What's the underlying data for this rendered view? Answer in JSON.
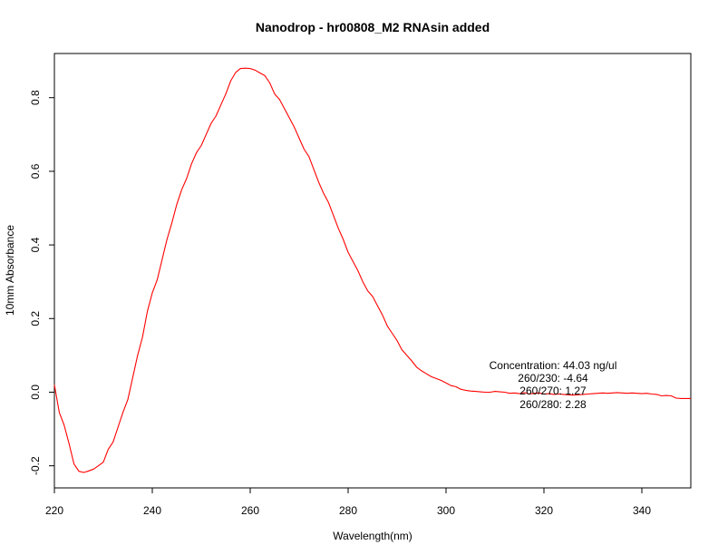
{
  "chart_data": {
    "type": "line",
    "title": "Nanodrop - hr00808_M2 RNAsin added",
    "xlabel": "Wavelength(nm)",
    "ylabel": "10mm Absorbance",
    "xlim": [
      220,
      350
    ],
    "ylim": [
      -0.26,
      0.92
    ],
    "xticks": [
      220,
      240,
      260,
      280,
      300,
      320,
      340
    ],
    "yticks": [
      -0.2,
      0.0,
      0.2,
      0.4,
      0.6,
      0.8
    ],
    "ytick_labels": [
      "-0.2",
      "0.0",
      "0.2",
      "0.4",
      "0.6",
      "0.8"
    ],
    "grid": false,
    "line_color": "#ff0000",
    "series": [
      {
        "x": [
          220,
          221,
          222,
          223,
          224,
          225,
          226,
          227,
          228,
          229,
          230,
          231,
          232,
          233,
          234,
          235,
          236,
          237,
          238,
          239,
          240,
          241,
          242,
          243,
          244,
          245,
          246,
          247,
          248,
          249,
          250,
          251,
          252,
          253,
          254,
          255,
          256,
          257,
          258,
          259,
          260,
          261,
          262,
          263,
          264,
          265,
          266,
          267,
          268,
          269,
          270,
          271,
          272,
          273,
          274,
          275,
          276,
          277,
          278,
          279,
          280,
          281,
          282,
          283,
          284,
          285,
          286,
          287,
          288,
          289,
          290,
          291,
          292,
          293,
          294,
          295,
          296,
          297,
          298,
          299,
          300,
          301,
          302,
          303,
          304,
          305,
          306,
          307,
          308,
          309,
          310,
          311,
          312,
          313,
          314,
          315,
          316,
          317,
          318,
          319,
          320,
          321,
          322,
          323,
          324,
          325,
          326,
          327,
          328,
          329,
          330,
          331,
          332,
          333,
          334,
          335,
          336,
          337,
          338,
          339,
          340,
          341,
          342,
          343,
          344,
          345,
          346,
          347,
          348,
          349,
          350
        ],
        "y": [
          0.02,
          -0.055,
          -0.09,
          -0.14,
          -0.195,
          -0.215,
          -0.218,
          -0.214,
          -0.209,
          -0.2,
          -0.19,
          -0.155,
          -0.135,
          -0.095,
          -0.055,
          -0.02,
          0.04,
          0.1,
          0.15,
          0.22,
          0.27,
          0.305,
          0.36,
          0.415,
          0.46,
          0.51,
          0.55,
          0.58,
          0.62,
          0.65,
          0.67,
          0.7,
          0.73,
          0.75,
          0.78,
          0.81,
          0.845,
          0.868,
          0.879,
          0.88,
          0.879,
          0.875,
          0.867,
          0.86,
          0.84,
          0.81,
          0.795,
          0.77,
          0.745,
          0.72,
          0.69,
          0.66,
          0.64,
          0.605,
          0.57,
          0.54,
          0.515,
          0.48,
          0.445,
          0.415,
          0.38,
          0.355,
          0.33,
          0.3,
          0.275,
          0.26,
          0.235,
          0.21,
          0.18,
          0.16,
          0.14,
          0.115,
          0.1,
          0.085,
          0.068,
          0.058,
          0.05,
          0.042,
          0.037,
          0.032,
          0.025,
          0.018,
          0.015,
          0.008,
          0.005,
          0.003,
          0.002,
          0.001,
          0.0,
          0.0,
          0.002,
          0.001,
          0.0,
          -0.003,
          -0.002,
          -0.004,
          -0.001,
          -0.005,
          -0.003,
          -0.002,
          -0.005,
          -0.004,
          -0.006,
          -0.005,
          -0.006,
          -0.007,
          -0.008,
          -0.007,
          -0.006,
          -0.005,
          -0.004,
          -0.003,
          -0.002,
          -0.003,
          -0.002,
          -0.001,
          -0.002,
          -0.003,
          -0.002,
          -0.003,
          -0.004,
          -0.003,
          -0.005,
          -0.006,
          -0.01,
          -0.009,
          -0.01,
          -0.016,
          -0.017,
          -0.017,
          -0.017
        ]
      }
    ],
    "annotations": [
      "Concentration: 44.03 ng/ul",
      "260/230: -4.64",
      "260/270: 1.27",
      "260/280: 2.28"
    ]
  }
}
